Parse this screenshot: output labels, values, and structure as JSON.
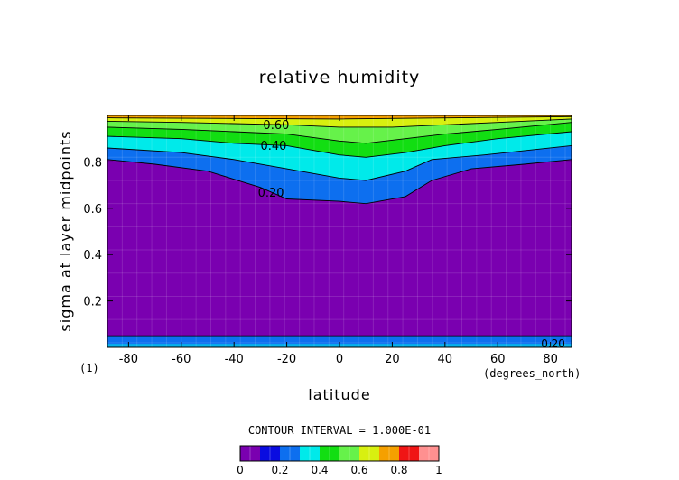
{
  "chart_data": {
    "type": "contour",
    "title": "relative humidity",
    "xlabel": "latitude",
    "ylabel": "sigma at layer midpoints",
    "x_unit": "(degrees_north)",
    "y_unit": "(1)",
    "xlim": [
      -88,
      88
    ],
    "ylim": [
      0,
      1
    ],
    "x_ticks": [
      "-80",
      "-60",
      "-40",
      "-20",
      "0",
      "20",
      "40",
      "60",
      "80"
    ],
    "x_tick_values": [
      -80,
      -60,
      -40,
      -20,
      0,
      20,
      40,
      60,
      80
    ],
    "y_ticks": [
      "0.2",
      "0.4",
      "0.6",
      "0.8"
    ],
    "y_tick_values": [
      0.2,
      0.4,
      0.6,
      0.8
    ],
    "contour_interval_text": "CONTOUR INTERVAL = 1.000E-01",
    "contour_labels": [
      "0.60",
      "0.40",
      "0.20",
      "0.20"
    ],
    "colorbar": {
      "tick_labels": [
        "0",
        "0.2",
        "0.4",
        "0.6",
        "0.8",
        "1"
      ],
      "levels": [
        0,
        0.1,
        0.2,
        0.3,
        0.4,
        0.5,
        0.6,
        0.7,
        0.8,
        0.9,
        1.0
      ],
      "colors": [
        "#7a00b0",
        "#0a0ce0",
        "#0d6fef",
        "#00eaea",
        "#12de12",
        "#66f24a",
        "#d8f010",
        "#f5a000",
        "#f01515",
        "#ff9090"
      ]
    },
    "contours": [
      {
        "level": 0.2,
        "points": [
          [
            -88,
            0.81
          ],
          [
            -70,
            0.79
          ],
          [
            -50,
            0.76
          ],
          [
            -30,
            0.69
          ],
          [
            -20,
            0.64
          ],
          [
            0,
            0.63
          ],
          [
            10,
            0.62
          ],
          [
            25,
            0.65
          ],
          [
            35,
            0.72
          ],
          [
            50,
            0.77
          ],
          [
            70,
            0.79
          ],
          [
            88,
            0.81
          ]
        ]
      },
      {
        "level": 0.3,
        "points": [
          [
            -88,
            0.86
          ],
          [
            -60,
            0.84
          ],
          [
            -40,
            0.81
          ],
          [
            -20,
            0.77
          ],
          [
            0,
            0.73
          ],
          [
            10,
            0.72
          ],
          [
            25,
            0.76
          ],
          [
            35,
            0.81
          ],
          [
            55,
            0.83
          ],
          [
            88,
            0.87
          ]
        ]
      },
      {
        "level": 0.4,
        "points": [
          [
            -88,
            0.91
          ],
          [
            -60,
            0.9
          ],
          [
            -40,
            0.88
          ],
          [
            -20,
            0.87
          ],
          [
            0,
            0.83
          ],
          [
            10,
            0.82
          ],
          [
            25,
            0.84
          ],
          [
            40,
            0.87
          ],
          [
            60,
            0.9
          ],
          [
            88,
            0.93
          ]
        ]
      },
      {
        "level": 0.5,
        "points": [
          [
            -88,
            0.95
          ],
          [
            -60,
            0.94
          ],
          [
            -40,
            0.93
          ],
          [
            -20,
            0.92
          ],
          [
            0,
            0.89
          ],
          [
            10,
            0.88
          ],
          [
            25,
            0.9
          ],
          [
            40,
            0.92
          ],
          [
            60,
            0.94
          ],
          [
            88,
            0.97
          ]
        ]
      },
      {
        "level": 0.6,
        "points": [
          [
            -88,
            0.975
          ],
          [
            -60,
            0.97
          ],
          [
            -40,
            0.965
          ],
          [
            -20,
            0.96
          ],
          [
            0,
            0.95
          ],
          [
            20,
            0.95
          ],
          [
            40,
            0.96
          ],
          [
            60,
            0.97
          ],
          [
            88,
            0.985
          ]
        ]
      },
      {
        "level": 0.7,
        "points": [
          [
            -88,
            0.99
          ],
          [
            0,
            0.985
          ],
          [
            88,
            0.995
          ]
        ]
      }
    ],
    "surface_layer": {
      "level": 0.2,
      "sigma_top": 0.05,
      "sigma_inner": 0.015,
      "level_inner": 0.3
    }
  }
}
